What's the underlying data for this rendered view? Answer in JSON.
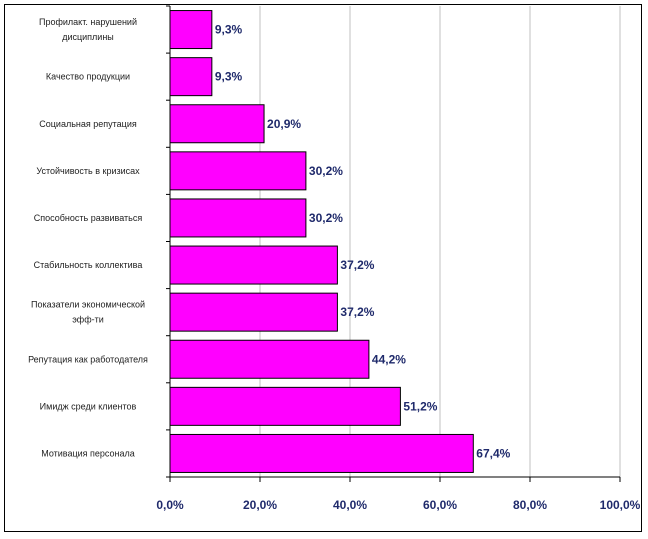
{
  "chart_data": {
    "type": "bar",
    "orientation": "horizontal",
    "categories": [
      "Профилакт. нарушений дисциплины",
      "Качество продукции",
      "Социальная репутация",
      "Устойчивость в кризисах",
      "Способность развиваться",
      "Стабильность коллектива",
      "Показатели экономической эфф-ти",
      "Репутация как работодателя",
      "Имидж среди клиентов",
      "Мотивация персонала"
    ],
    "category_lines": [
      [
        "Профилакт. нарушений",
        "дисциплины"
      ],
      [
        "Качество продукции"
      ],
      [
        "Социальная репутация"
      ],
      [
        "Устойчивость в кризисах"
      ],
      [
        "Способность развиваться"
      ],
      [
        "Стабильность коллектива"
      ],
      [
        "Показатели экономической",
        "эфф-ти"
      ],
      [
        "Репутация как работодателя"
      ],
      [
        "Имидж среди клиентов"
      ],
      [
        "Мотивация персонала"
      ]
    ],
    "values": [
      9.3,
      9.3,
      20.9,
      30.2,
      30.2,
      37.2,
      37.2,
      44.2,
      51.2,
      67.4
    ],
    "value_labels": [
      "9,3%",
      "9,3%",
      "20,9%",
      "30,2%",
      "30,2%",
      "37,2%",
      "37,2%",
      "44,2%",
      "51,2%",
      "67,4%"
    ],
    "xlim": [
      0,
      100
    ],
    "xticks": [
      0,
      20,
      40,
      60,
      80,
      100
    ],
    "xtick_labels": [
      "0,0%",
      "20,0%",
      "40,0%",
      "60,0%",
      "80,0%",
      "100,0%"
    ],
    "grid": true,
    "legend": "none",
    "title": "",
    "xlabel": "",
    "ylabel": "",
    "colors": {
      "bar": "#ff00ff",
      "bar_edge": "#000000",
      "grid": "#c0c0c0",
      "text": "#1f2a6b"
    }
  }
}
